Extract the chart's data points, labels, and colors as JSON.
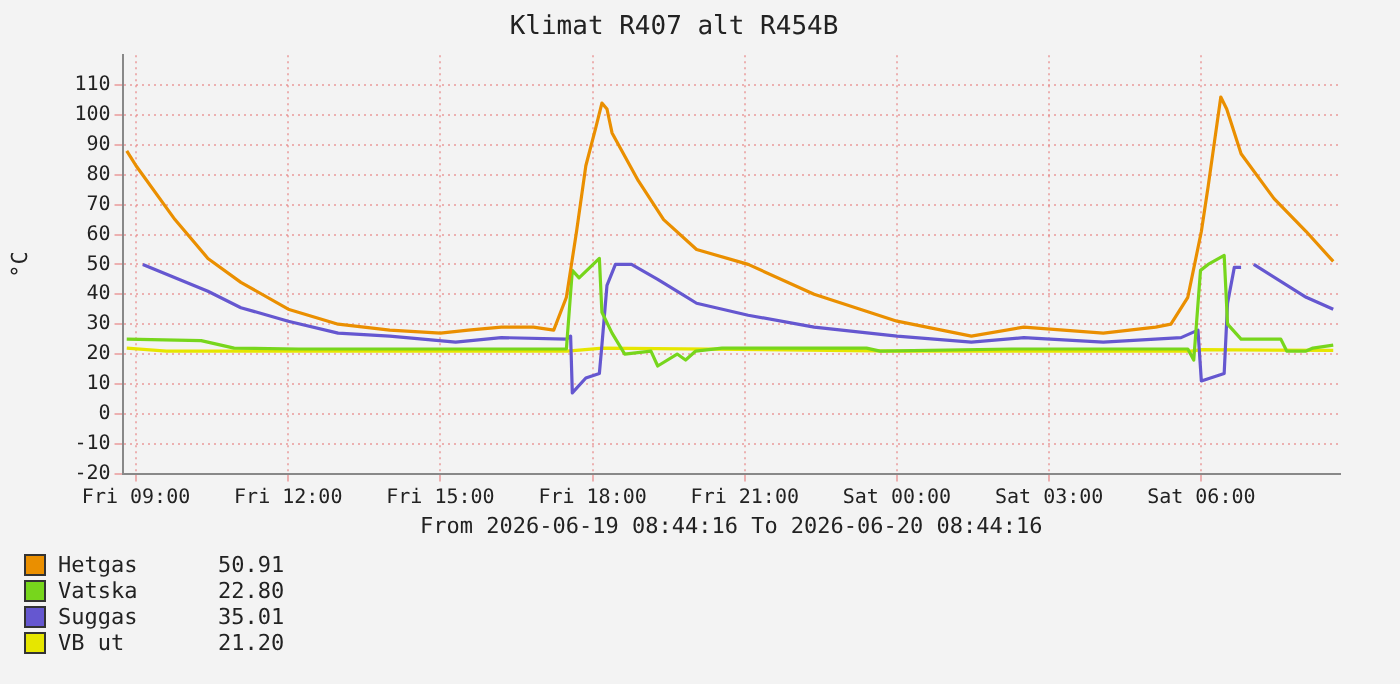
{
  "chart_data": {
    "type": "line",
    "title": "Klimat R407 alt R454B",
    "xlabel": "From 2026-06-19 08:44:16 To 2026-06-20 08:44:16",
    "ylabel": "°C",
    "xlim": [
      "2026-06-19T08:44",
      "2026-06-20T08:44"
    ],
    "xticks": [
      {
        "value": "2026-06-19T09:00",
        "label": "Fri 09:00"
      },
      {
        "value": "2026-06-19T12:00",
        "label": "Fri 12:00"
      },
      {
        "value": "2026-06-19T15:00",
        "label": "Fri 15:00"
      },
      {
        "value": "2026-06-19T18:00",
        "label": "Fri 18:00"
      },
      {
        "value": "2026-06-19T21:00",
        "label": "Fri 21:00"
      },
      {
        "value": "2026-06-20T00:00",
        "label": "Sat 00:00"
      },
      {
        "value": "2026-06-20T03:00",
        "label": "Sat 03:00"
      },
      {
        "value": "2026-06-20T06:00",
        "label": "Sat 06:00"
      }
    ],
    "ylim": [
      -20,
      120
    ],
    "yticks": [
      -20,
      -10,
      0,
      10,
      20,
      30,
      40,
      50,
      60,
      70,
      80,
      90,
      100,
      110
    ],
    "grid": true,
    "legend": "bottom left",
    "annotations": [
      "50.91",
      "22.80",
      "35.01",
      "21.20"
    ],
    "series": [
      {
        "name": "Hetgas",
        "color": "#ea8f00",
        "x": [
          "2026-06-19T08:49",
          "2026-06-19T09:00",
          "2026-06-19T09:46",
          "2026-06-19T10:25",
          "2026-06-19T11:04",
          "2026-06-19T12:00",
          "2026-06-19T12:59",
          "2026-06-19T14:00",
          "2026-06-19T15:00",
          "2026-06-19T15:33",
          "2026-06-19T16:12",
          "2026-06-19T16:50",
          "2026-06-19T17:14",
          "2026-06-19T17:29",
          "2026-06-19T17:41",
          "2026-06-19T17:52",
          "2026-06-19T18:04",
          "2026-06-19T18:11",
          "2026-06-19T18:17",
          "2026-06-19T18:23",
          "2026-06-19T18:54",
          "2026-06-19T19:24",
          "2026-06-19T20:03",
          "2026-06-19T21:04",
          "2026-06-19T22:22",
          "2026-06-20T00:00",
          "2026-06-20T01:28",
          "2026-06-20T02:30",
          "2026-06-20T04:04",
          "2026-06-20T05:06",
          "2026-06-20T05:24",
          "2026-06-20T05:44",
          "2026-06-20T06:00",
          "2026-06-20T06:08",
          "2026-06-20T06:16",
          "2026-06-20T06:23",
          "2026-06-20T06:30",
          "2026-06-20T06:47",
          "2026-06-20T07:26",
          "2026-06-20T08:04",
          "2026-06-20T08:36"
        ],
        "values": [
          88,
          83,
          65,
          52,
          44,
          35,
          30,
          28,
          27,
          28,
          29,
          29,
          28,
          39,
          61,
          83,
          96,
          104,
          102,
          94,
          78,
          65,
          55,
          50,
          40,
          31,
          26,
          29,
          27,
          29,
          30,
          39,
          61,
          76,
          92,
          106,
          102,
          87,
          72,
          61,
          51
        ]
      },
      {
        "name": "Vatska",
        "color": "#77d61c",
        "x": [
          "2026-06-19T08:49",
          "2026-06-19T10:17",
          "2026-06-19T10:56",
          "2026-06-19T12:12",
          "2026-06-19T17:29",
          "2026-06-19T17:36",
          "2026-06-19T17:44",
          "2026-06-19T18:08",
          "2026-06-19T18:11",
          "2026-06-19T18:23",
          "2026-06-19T18:38",
          "2026-06-19T19:09",
          "2026-06-19T19:17",
          "2026-06-19T19:40",
          "2026-06-19T19:50",
          "2026-06-19T20:02",
          "2026-06-19T20:33",
          "2026-06-19T23:24",
          "2026-06-19T23:40",
          "2026-06-20T02:15",
          "2026-06-20T05:44",
          "2026-06-20T05:51",
          "2026-06-20T05:59",
          "2026-06-20T06:08",
          "2026-06-20T06:27",
          "2026-06-20T06:31",
          "2026-06-20T06:47",
          "2026-06-20T07:34",
          "2026-06-20T07:41",
          "2026-06-20T08:04",
          "2026-06-20T08:12",
          "2026-06-20T08:36"
        ],
        "values": [
          25,
          24.5,
          22,
          21.7,
          21.7,
          48,
          45.5,
          52,
          34,
          27,
          20,
          21,
          16,
          20,
          18,
          21,
          22,
          22,
          21,
          21.7,
          21.7,
          18,
          48,
          50,
          53,
          30,
          25,
          25,
          21,
          21,
          22,
          23
        ]
      },
      {
        "name": "Suggas",
        "color": "#6557d0",
        "x": [
          "2026-06-19T09:08",
          "2026-06-19T10:25",
          "2026-06-19T11:04",
          "2026-06-19T12:00",
          "2026-06-19T12:59",
          "2026-06-19T14:00",
          "2026-06-19T15:18",
          "2026-06-19T16:12",
          "2026-06-19T17:29",
          "2026-06-19T17:34",
          "2026-06-19T17:36",
          "2026-06-19T17:52",
          "2026-06-19T18:08",
          "2026-06-19T18:11",
          "2026-06-19T18:17",
          "2026-06-19T18:27",
          "2026-06-19T18:46",
          "2026-06-19T19:17",
          "2026-06-19T19:46",
          "2026-06-19T20:03",
          "2026-06-19T21:04",
          "2026-06-19T22:22",
          "2026-06-20T00:00",
          "2026-06-20T01:28",
          "2026-06-20T02:30",
          "2026-06-20T04:04",
          "2026-06-20T05:36",
          "2026-06-20T05:56",
          "2026-06-20T06:00",
          "2026-06-20T06:27",
          "2026-06-20T06:31",
          "2026-06-20T06:39",
          "2026-06-20T06:47",
          "2026-06-20T06:54",
          "2026-06-20T07:02",
          "2026-06-20T08:04",
          "2026-06-20T08:36"
        ],
        "values": [
          50,
          41,
          35.5,
          31,
          27,
          26,
          24,
          25.5,
          25,
          26,
          7,
          12,
          13.5,
          23,
          43,
          50,
          50,
          45,
          40,
          37,
          33,
          29,
          26,
          24,
          25.5,
          24,
          25.5,
          28,
          11,
          13.5,
          37,
          49,
          49,
          null,
          50,
          39,
          35
        ]
      },
      {
        "name": "VB ut",
        "color": "#e6e600",
        "x": [
          "2026-06-19T08:49",
          "2026-06-19T09:36",
          "2026-06-19T17:30",
          "2026-06-19T18:12",
          "2026-06-20T00:00",
          "2026-06-20T05:48",
          "2026-06-20T06:00",
          "2026-06-20T08:36"
        ],
        "values": [
          22,
          21,
          21,
          22,
          21,
          21,
          21.5,
          21.2
        ]
      }
    ]
  }
}
